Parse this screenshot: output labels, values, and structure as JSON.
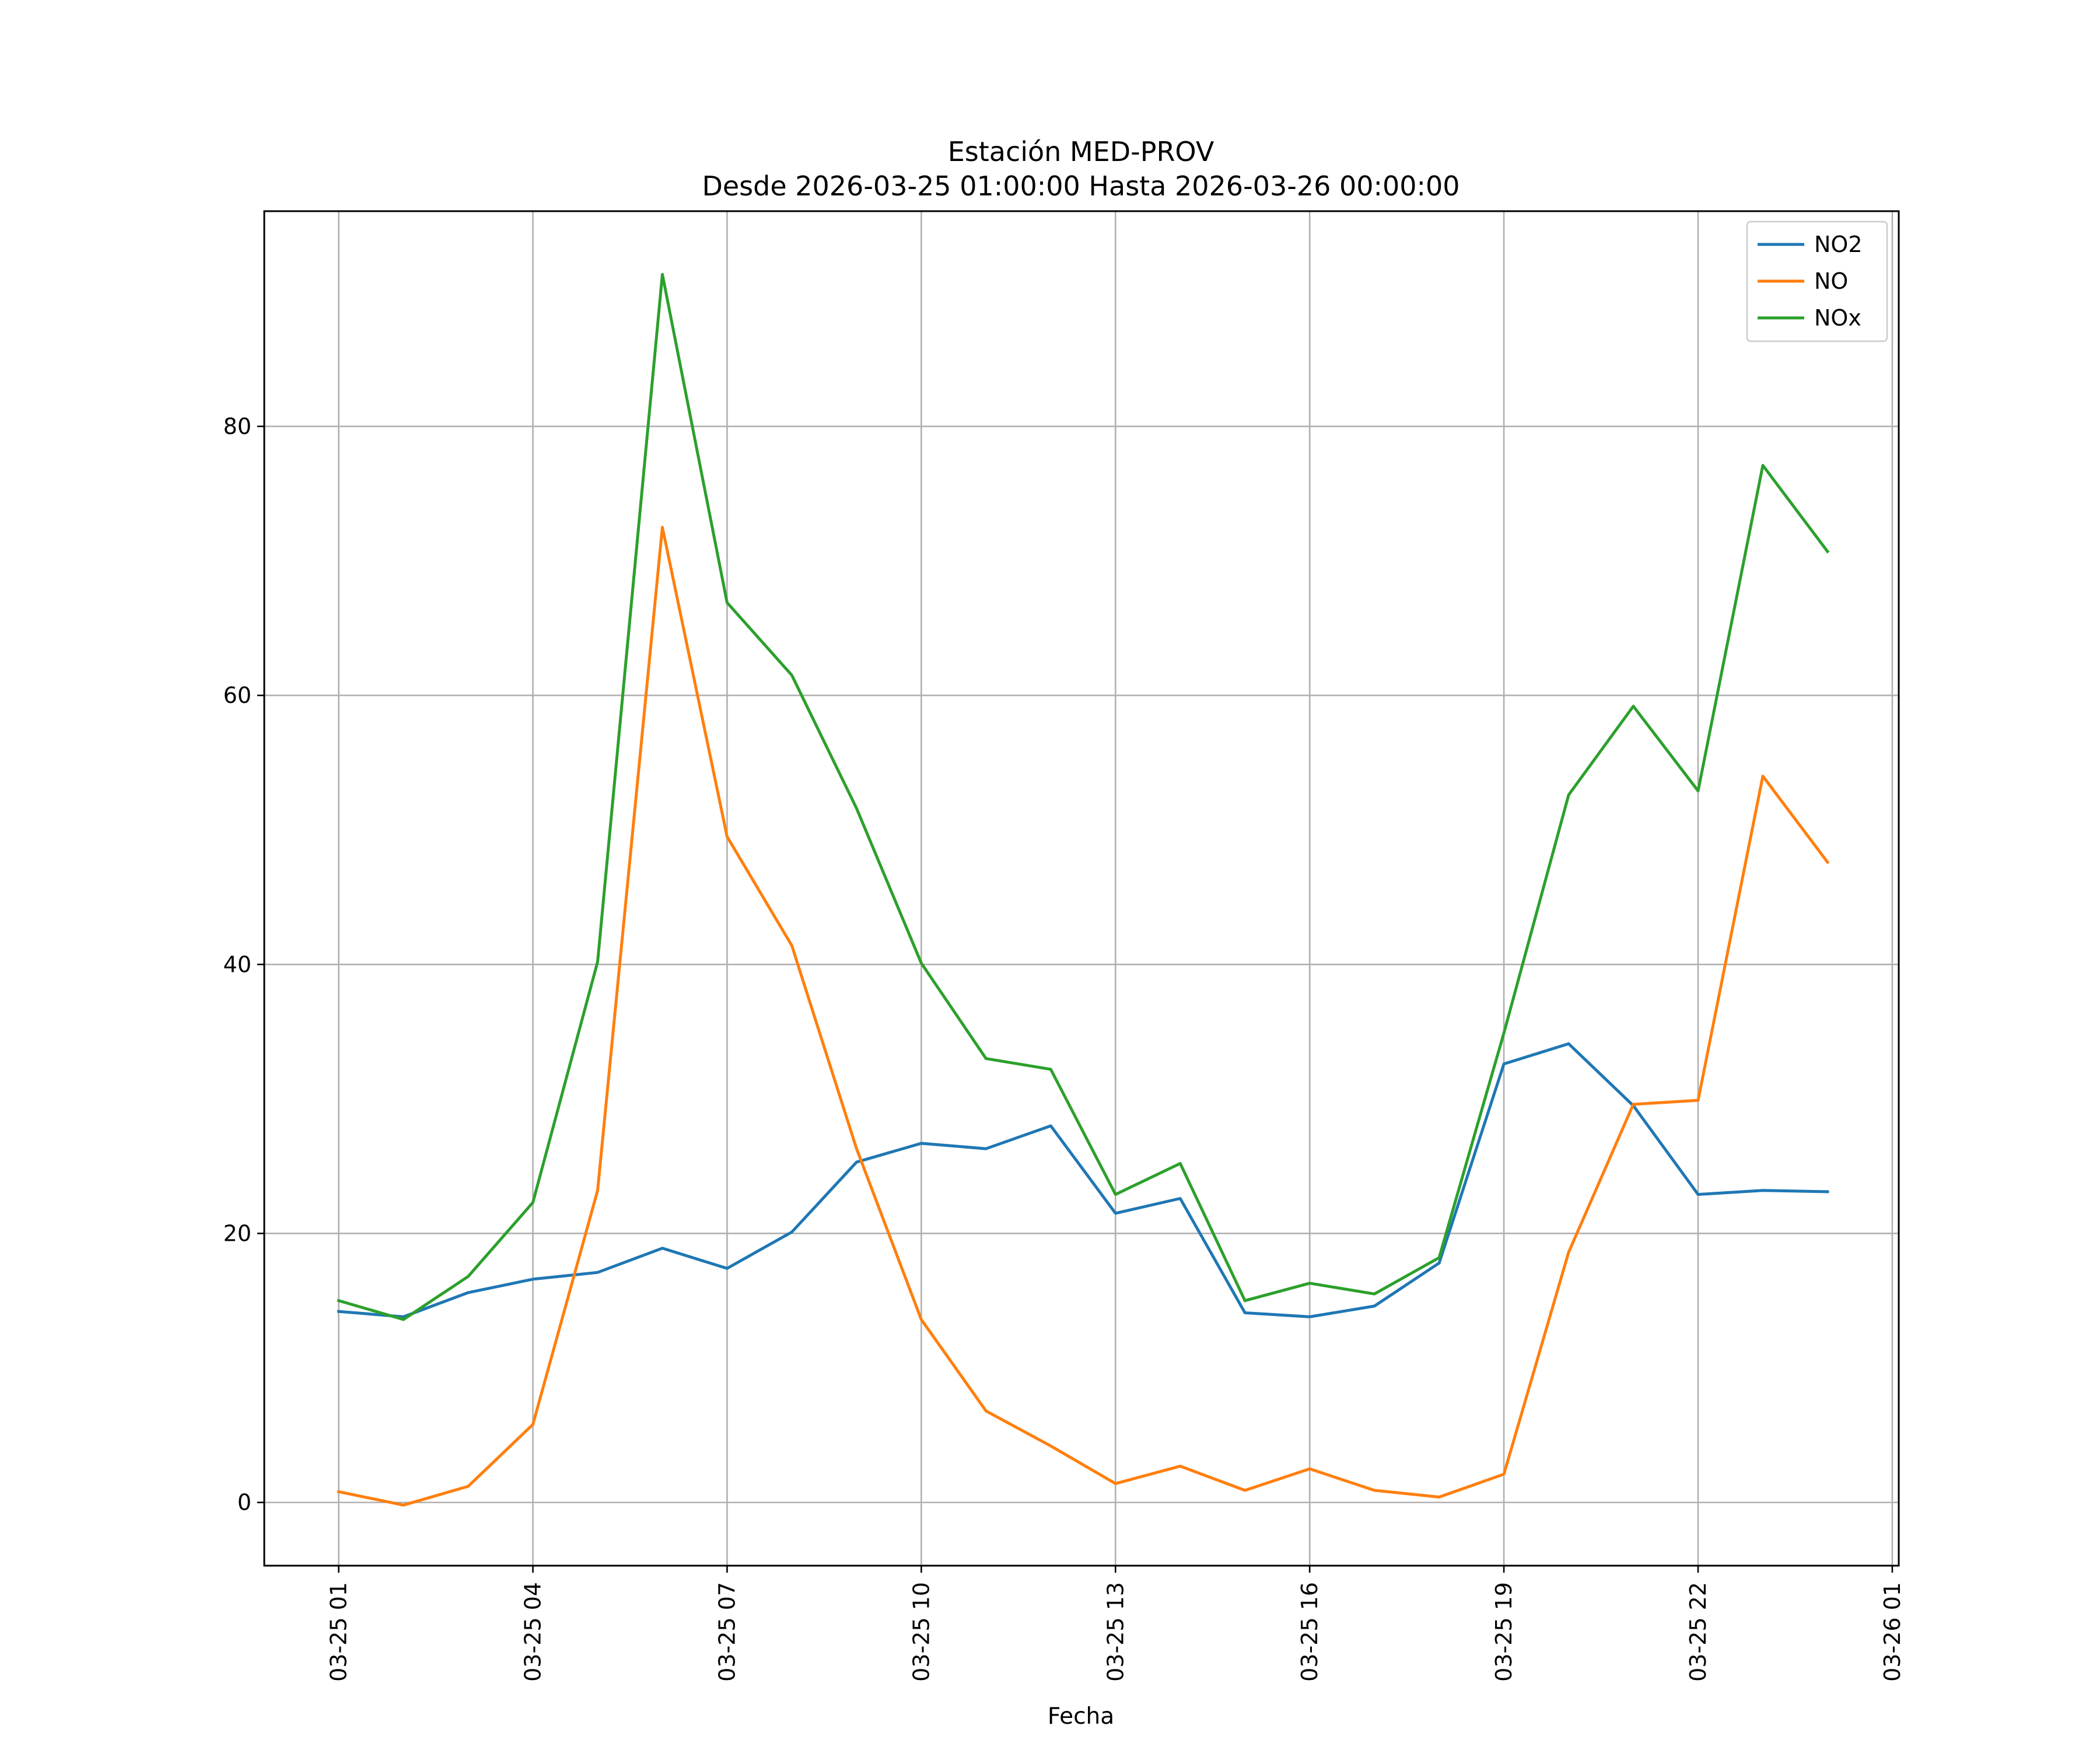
{
  "chart_data": {
    "type": "line",
    "title": "Estación MED-PROV",
    "subtitle": "Desde 2026-03-25 01:00:00 Hasta 2026-03-26 00:00:00",
    "xlabel": "Fecha",
    "ylabel": "",
    "x": [
      "03-25 01:00",
      "03-25 02:00",
      "03-25 03:00",
      "03-25 04:00",
      "03-25 05:00",
      "03-25 06:00",
      "03-25 07:00",
      "03-25 08:00",
      "03-25 09:00",
      "03-25 10:00",
      "03-25 11:00",
      "03-25 12:00",
      "03-25 13:00",
      "03-25 14:00",
      "03-25 15:00",
      "03-25 16:00",
      "03-25 17:00",
      "03-25 18:00",
      "03-25 19:00",
      "03-25 20:00",
      "03-25 21:00",
      "03-25 22:00",
      "03-25 23:00",
      "03-26 00:00"
    ],
    "x_tick_labels": [
      "03-25 01",
      "03-25 04",
      "03-25 07",
      "03-25 10",
      "03-25 13",
      "03-25 16",
      "03-25 19",
      "03-25 22",
      "03-26 01"
    ],
    "x_tick_hours": [
      1,
      4,
      7,
      10,
      13,
      16,
      19,
      22,
      25
    ],
    "xlim_hours": [
      -0.15,
      25.1
    ],
    "y_ticks": [
      0,
      20,
      40,
      60,
      80
    ],
    "ylim": [
      -4.7,
      96
    ],
    "grid": true,
    "legend_position": "top-right",
    "series": [
      {
        "name": "NO2",
        "color": "#1f77b4",
        "values": [
          14.2,
          13.8,
          15.6,
          16.6,
          17.1,
          18.9,
          17.4,
          20.1,
          25.3,
          26.7,
          26.3,
          28.0,
          21.5,
          22.6,
          14.1,
          13.8,
          14.6,
          17.8,
          32.6,
          34.1,
          29.5,
          22.9,
          23.2,
          23.1
        ]
      },
      {
        "name": "NO",
        "color": "#ff7f0e",
        "values": [
          0.8,
          -0.2,
          1.2,
          5.8,
          23.2,
          72.5,
          49.5,
          41.4,
          26.3,
          13.6,
          6.8,
          4.2,
          1.4,
          2.7,
          0.9,
          2.5,
          0.9,
          0.4,
          2.1,
          18.6,
          29.6,
          29.9,
          54.0,
          47.6
        ]
      },
      {
        "name": "NOx",
        "color": "#2ca02c",
        "values": [
          15.0,
          13.6,
          16.8,
          22.3,
          40.2,
          91.3,
          66.9,
          61.5,
          51.6,
          40.1,
          33.0,
          32.2,
          22.9,
          25.2,
          15.0,
          16.3,
          15.5,
          18.2,
          34.9,
          52.6,
          59.2,
          52.9,
          77.1,
          70.7
        ]
      }
    ]
  }
}
